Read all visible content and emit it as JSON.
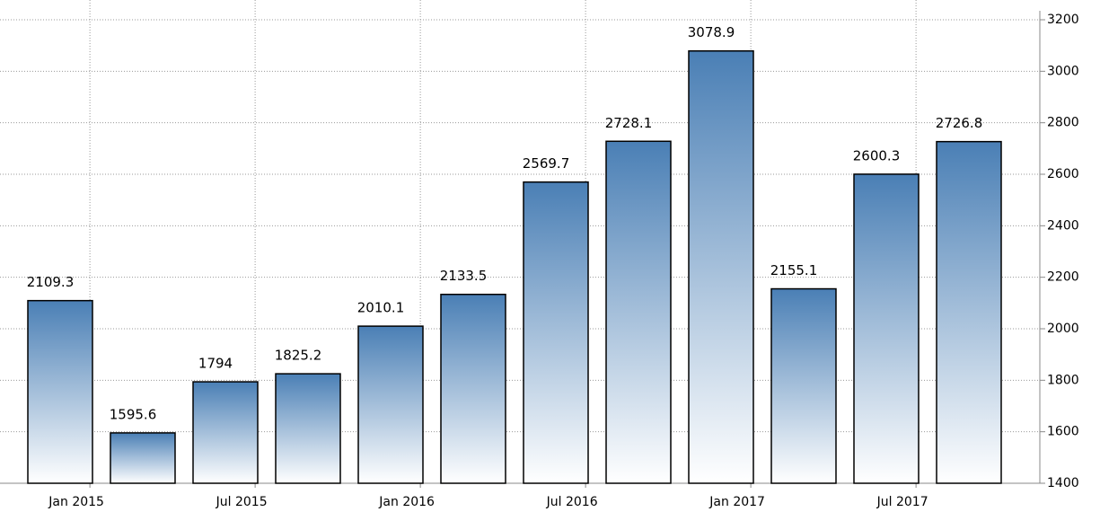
{
  "chart_data": {
    "type": "bar",
    "categories": [
      null,
      null,
      null,
      null,
      null,
      null,
      null,
      null,
      null,
      null,
      null,
      null
    ],
    "values": [
      2109.3,
      1595.6,
      1794,
      1825.2,
      2010.1,
      2133.5,
      2569.7,
      2728.1,
      3078.9,
      2155.1,
      2600.3,
      2726.8
    ],
    "color": "#4a7fb5",
    "ylim": [
      1400,
      3200
    ],
    "yticks": [
      1400,
      1600,
      1800,
      2000,
      2200,
      2400,
      2600,
      2800,
      3000,
      3200
    ],
    "xticks": [
      {
        "value": 0,
        "label": "Jan 2015"
      },
      {
        "value": 2,
        "label": "Jul 2015"
      },
      {
        "value": 4,
        "label": "Jan 2016"
      },
      {
        "value": 6,
        "label": "Jul 2016"
      },
      {
        "value": 8,
        "label": "Jan 2017"
      },
      {
        "value": 10,
        "label": "Jul 2017"
      }
    ],
    "grid": true
  }
}
